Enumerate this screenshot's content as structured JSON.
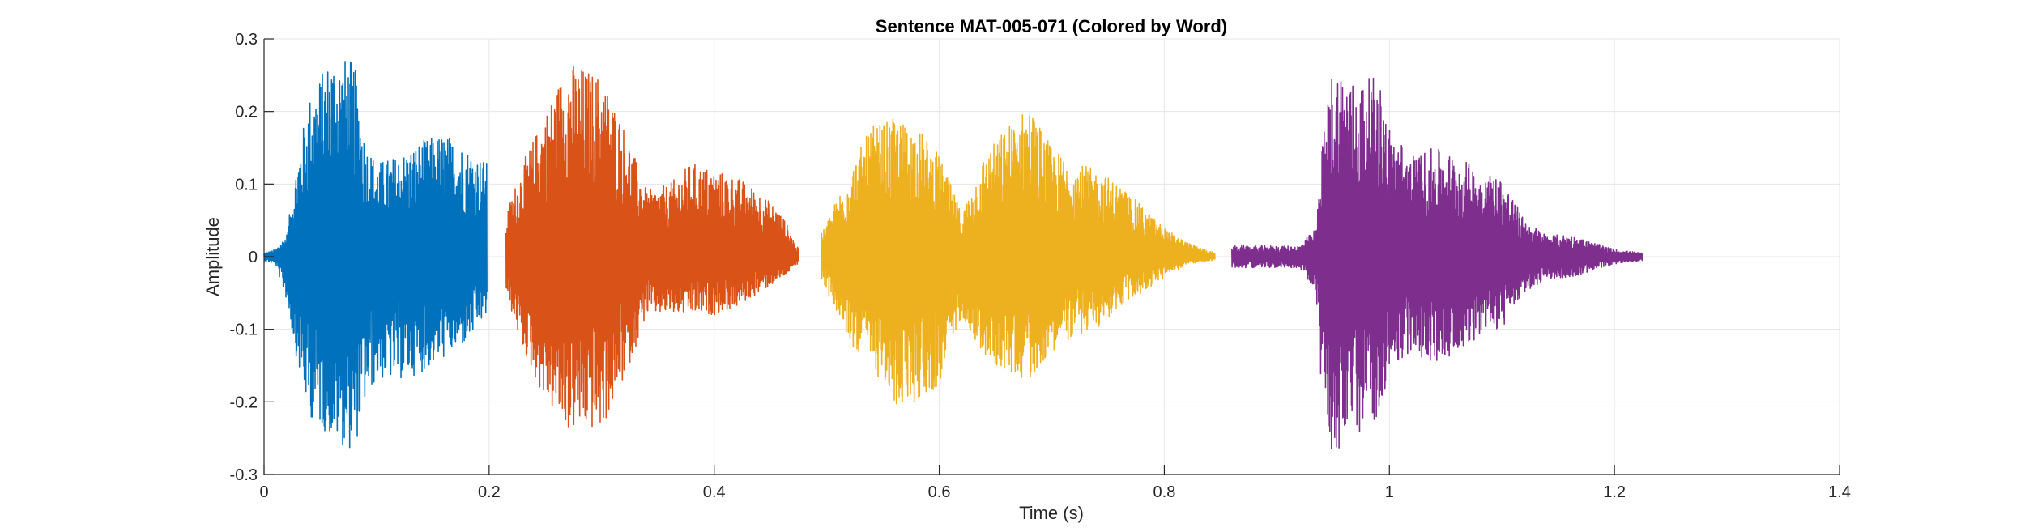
{
  "chart_data": {
    "type": "line",
    "title": "Sentence MAT-005-071 (Colored by Word)",
    "xlabel": "Time (s)",
    "ylabel": "Amplitude",
    "xlim": [
      0,
      1.4
    ],
    "ylim": [
      -0.3,
      0.3
    ],
    "xticks": [
      0,
      0.2,
      0.4,
      0.6,
      0.8,
      1,
      1.2,
      1.4
    ],
    "xtick_labels": [
      "0",
      "0.2",
      "0.4",
      "0.6",
      "0.8",
      "1",
      "1.2",
      "1.4"
    ],
    "yticks": [
      -0.3,
      -0.2,
      -0.1,
      0,
      0.1,
      0.2,
      0.3
    ],
    "ytick_labels": [
      "-0.3",
      "-0.2",
      "-0.1",
      "0",
      "0.1",
      "0.2",
      "0.3"
    ],
    "grid": true,
    "series": [
      {
        "color": "#0072BD",
        "x_range": [
          0.0,
          0.198
        ],
        "envelope_x": [
          0.0,
          0.01,
          0.02,
          0.03,
          0.04,
          0.06,
          0.08,
          0.09,
          0.1,
          0.12,
          0.14,
          0.16,
          0.18,
          0.198
        ],
        "envelope_max": [
          0.005,
          0.01,
          0.03,
          0.14,
          0.22,
          0.28,
          0.27,
          0.16,
          0.13,
          0.14,
          0.16,
          0.17,
          0.15,
          0.13
        ],
        "envelope_min": [
          -0.005,
          -0.01,
          -0.06,
          -0.15,
          -0.22,
          -0.25,
          -0.27,
          -0.2,
          -0.17,
          -0.17,
          -0.16,
          -0.14,
          -0.12,
          -0.08
        ]
      },
      {
        "color": "#D95319",
        "x_range": [
          0.215,
          0.475
        ],
        "envelope_x": [
          0.215,
          0.23,
          0.25,
          0.27,
          0.3,
          0.32,
          0.34,
          0.36,
          0.38,
          0.4,
          0.42,
          0.44,
          0.46,
          0.475
        ],
        "envelope_max": [
          0.06,
          0.13,
          0.2,
          0.27,
          0.25,
          0.18,
          0.09,
          0.1,
          0.13,
          0.12,
          0.11,
          0.09,
          0.06,
          0.01
        ],
        "envelope_min": [
          -0.05,
          -0.13,
          -0.2,
          -0.24,
          -0.24,
          -0.17,
          -0.08,
          -0.08,
          -0.08,
          -0.08,
          -0.07,
          -0.05,
          -0.03,
          -0.01
        ]
      },
      {
        "color": "#EDB120",
        "x_range": [
          0.495,
          0.845
        ],
        "envelope_x": [
          0.495,
          0.52,
          0.54,
          0.56,
          0.58,
          0.6,
          0.62,
          0.64,
          0.66,
          0.68,
          0.7,
          0.72,
          0.74,
          0.76,
          0.78,
          0.8,
          0.82,
          0.845
        ],
        "envelope_max": [
          0.03,
          0.12,
          0.18,
          0.19,
          0.18,
          0.14,
          0.06,
          0.14,
          0.18,
          0.21,
          0.15,
          0.13,
          0.12,
          0.1,
          0.07,
          0.04,
          0.02,
          0.005
        ],
        "envelope_min": [
          -0.03,
          -0.12,
          -0.15,
          -0.21,
          -0.2,
          -0.18,
          -0.08,
          -0.14,
          -0.16,
          -0.17,
          -0.13,
          -0.11,
          -0.1,
          -0.07,
          -0.05,
          -0.03,
          -0.01,
          -0.005
        ]
      },
      {
        "color": "#7E2F8E",
        "x_range": [
          0.86,
          1.225
        ],
        "envelope_x": [
          0.86,
          0.89,
          0.92,
          0.935,
          0.94,
          0.95,
          0.97,
          0.99,
          1.0,
          1.02,
          1.04,
          1.06,
          1.08,
          1.1,
          1.12,
          1.14,
          1.16,
          1.18,
          1.2,
          1.225
        ],
        "envelope_max": [
          0.015,
          0.015,
          0.015,
          0.04,
          0.15,
          0.27,
          0.24,
          0.25,
          0.18,
          0.14,
          0.15,
          0.14,
          0.12,
          0.11,
          0.05,
          0.03,
          0.03,
          0.02,
          0.01,
          0.005
        ],
        "envelope_min": [
          -0.015,
          -0.015,
          -0.015,
          -0.05,
          -0.2,
          -0.28,
          -0.25,
          -0.22,
          -0.16,
          -0.13,
          -0.15,
          -0.13,
          -0.11,
          -0.1,
          -0.05,
          -0.03,
          -0.03,
          -0.02,
          -0.01,
          -0.005
        ]
      }
    ]
  }
}
